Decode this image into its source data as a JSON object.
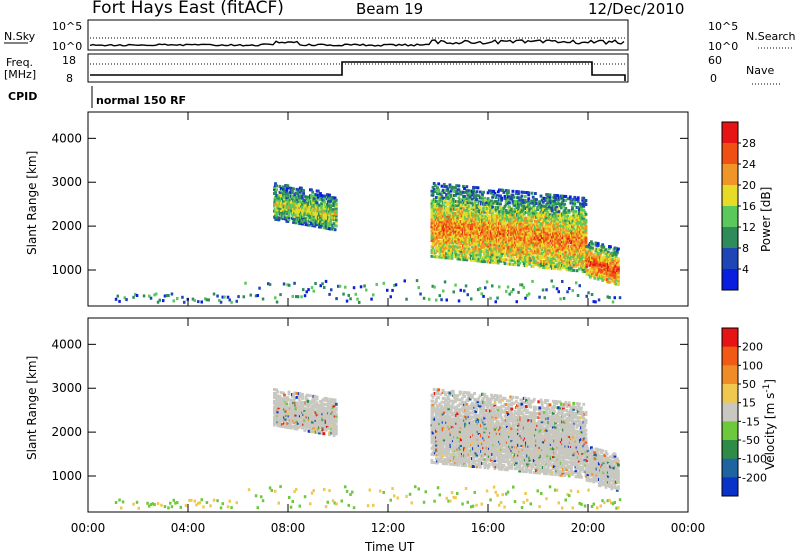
{
  "header": {
    "station": "Fort Hays East (fitACF)",
    "beam": "Beam 19",
    "date": "12/Dec/2010"
  },
  "noise_panel": {
    "left_label": "N.Sky",
    "right_label": "N.Search",
    "left_ticks": [
      "10^5",
      "10^0"
    ],
    "right_ticks": [
      "10^5",
      "10^0"
    ]
  },
  "freq_panel": {
    "left_label_1": "Freq.",
    "left_label_2": "[MHz]",
    "right_label": "Nave",
    "left_ticks": [
      "18",
      "8"
    ],
    "right_ticks": [
      "60",
      "0"
    ]
  },
  "cpid": {
    "label": "CPID",
    "mode": "normal 150 RF"
  },
  "chart_data": [
    {
      "type": "heatmap",
      "name": "power",
      "xlabel": "",
      "ylabel": "Slant Range [km]",
      "x_range_hours": [
        0,
        24
      ],
      "ylim": [
        180,
        4600
      ],
      "yticks": [
        "4000",
        "3000",
        "2000",
        "1000"
      ],
      "colorbar_label": "Power [dB]",
      "colorbar_ticks": [
        "28",
        "24",
        "20",
        "16",
        "12",
        "8",
        "4"
      ],
      "colors": [
        "#0a1ee0",
        "#1e46b4",
        "#2e8c5a",
        "#5ac85a",
        "#e6dc28",
        "#f09628",
        "#f05014",
        "#e61414"
      ],
      "regions": [
        {
          "t": [
            7.4,
            9.9
          ],
          "r0": [
            2500,
            2250
          ],
          "halfwidth": 350,
          "level": 0.55
        },
        {
          "t": [
            13.7,
            19.9
          ],
          "r0": [
            2000,
            1650
          ],
          "halfwidth": 700,
          "level": 0.75
        },
        {
          "t": [
            19.9,
            21.2
          ],
          "r0": [
            1200,
            1000
          ],
          "halfwidth": 350,
          "level": 0.85
        }
      ]
    },
    {
      "type": "heatmap",
      "name": "velocity",
      "xlabel": "Time UT",
      "ylabel": "Slant Range [km]",
      "x_range_hours": [
        0,
        24
      ],
      "ylim": [
        180,
        4600
      ],
      "xticks": [
        "00:00",
        "04:00",
        "08:00",
        "12:00",
        "16:00",
        "20:00",
        "00:00"
      ],
      "yticks": [
        "4000",
        "3000",
        "2000",
        "1000"
      ],
      "colorbar_label": "Velocity [m s^-1]",
      "colorbar_ticks": [
        "200",
        "100",
        "50",
        "15",
        "-15",
        "-50",
        "-100",
        "-200"
      ],
      "colors": [
        "#0a32c8",
        "#1e64a0",
        "#2e8c46",
        "#6ec83c",
        "#c8c8c0",
        "#f0c850",
        "#f08c28",
        "#f05a14",
        "#e61414"
      ],
      "regions": [
        {
          "t": [
            7.4,
            9.9
          ],
          "r0": [
            2500,
            2250
          ],
          "halfwidth": 350
        },
        {
          "t": [
            13.7,
            19.9
          ],
          "r0": [
            2000,
            1650
          ],
          "halfwidth": 700
        },
        {
          "t": [
            19.9,
            21.2
          ],
          "r0": [
            1200,
            1000
          ],
          "halfwidth": 350
        }
      ]
    }
  ],
  "colors": {
    "axis": "#000000",
    "ionosphere_gray": "#c8c8c0"
  }
}
